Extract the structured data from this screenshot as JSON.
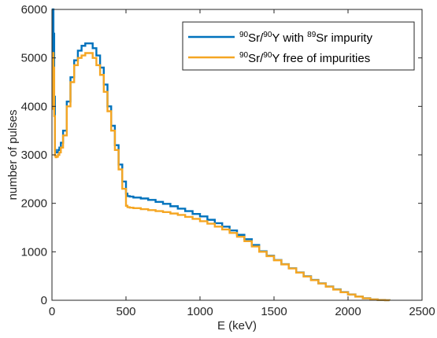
{
  "chart_data": {
    "type": "line",
    "xlabel": "E (keV)",
    "ylabel": "number of pulses",
    "xlim": [
      0,
      2500
    ],
    "ylim": [
      0,
      6000
    ],
    "xticks": [
      0,
      500,
      1000,
      1500,
      2000,
      2500
    ],
    "yticks": [
      0,
      1000,
      2000,
      3000,
      4000,
      5000,
      6000
    ],
    "grid": false,
    "legend_position": "top-right",
    "x": [
      0,
      5,
      10,
      15,
      20,
      25,
      30,
      40,
      50,
      60,
      75,
      100,
      125,
      150,
      175,
      200,
      225,
      250,
      275,
      300,
      325,
      350,
      375,
      400,
      425,
      450,
      475,
      500,
      510,
      525,
      550,
      600,
      650,
      700,
      750,
      800,
      850,
      900,
      950,
      1000,
      1050,
      1100,
      1150,
      1200,
      1250,
      1300,
      1350,
      1400,
      1450,
      1500,
      1550,
      1600,
      1650,
      1700,
      1750,
      1800,
      1850,
      1900,
      1950,
      2000,
      2050,
      2100,
      2150,
      2200,
      2250,
      2280
    ],
    "series": [
      {
        "name_parts": [
          {
            "t": "90",
            "sup": true
          },
          {
            "t": "Sr/",
            "sup": false
          },
          {
            "t": "90",
            "sup": true
          },
          {
            "t": "Y with ",
            "sup": false
          },
          {
            "t": "89",
            "sup": true
          },
          {
            "t": "Sr impurity",
            "sup": false
          }
        ],
        "color": "#0072bd",
        "values": [
          3950,
          6000,
          5500,
          4200,
          3100,
          3050,
          3050,
          3100,
          3150,
          3250,
          3500,
          4100,
          4600,
          4950,
          5150,
          5250,
          5300,
          5300,
          5200,
          5050,
          4800,
          4450,
          4000,
          3600,
          3200,
          2800,
          2450,
          2200,
          2150,
          2140,
          2120,
          2100,
          2070,
          2030,
          1990,
          1940,
          1890,
          1840,
          1780,
          1730,
          1660,
          1590,
          1520,
          1440,
          1350,
          1260,
          1140,
          1010,
          920,
          830,
          745,
          660,
          575,
          495,
          420,
          350,
          285,
          225,
          170,
          120,
          78,
          42,
          18,
          6,
          1,
          0
        ]
      },
      {
        "name_parts": [
          {
            "t": "90",
            "sup": true
          },
          {
            "t": "Sr/",
            "sup": false
          },
          {
            "t": "90",
            "sup": true
          },
          {
            "t": "Y free of impurities",
            "sup": false
          }
        ],
        "color": "#f5a623",
        "values": [
          3950,
          5100,
          4800,
          3800,
          2980,
          2950,
          2960,
          3000,
          3050,
          3150,
          3400,
          4000,
          4500,
          4850,
          5000,
          5050,
          5100,
          5100,
          5000,
          4850,
          4650,
          4300,
          3900,
          3500,
          3100,
          2700,
          2300,
          1950,
          1920,
          1910,
          1900,
          1880,
          1860,
          1840,
          1820,
          1790,
          1760,
          1720,
          1680,
          1630,
          1580,
          1520,
          1460,
          1390,
          1310,
          1220,
          1110,
          1000,
          910,
          825,
          740,
          655,
          570,
          490,
          415,
          345,
          280,
          220,
          165,
          118,
          75,
          40,
          16,
          5,
          1,
          0
        ]
      }
    ]
  }
}
